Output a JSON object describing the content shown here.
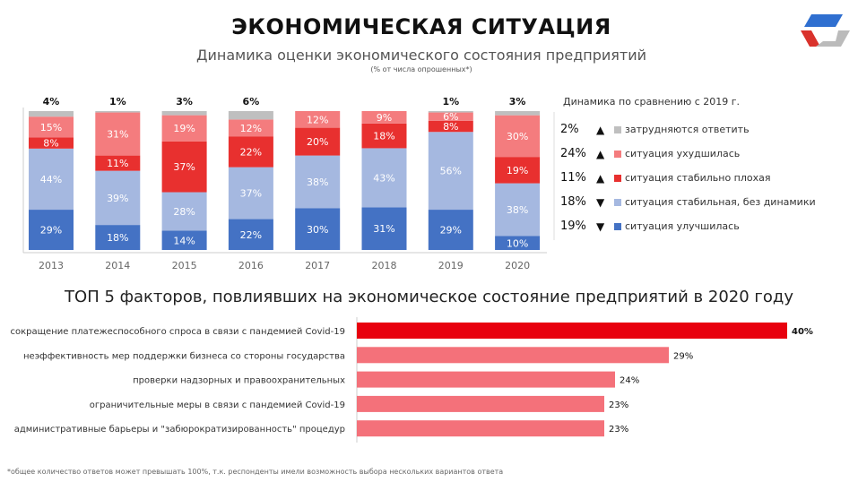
{
  "header": {
    "title": "ЭКОНОМИЧЕСКАЯ СИТУАЦИЯ",
    "subtitle": "Динамика оценки экономического состояния предприятий",
    "note": "(% от числа опрошенных*)"
  },
  "legend": {
    "title": "Динамика по сравнению с 2019 г.",
    "items": [
      {
        "change": "2%",
        "arrow": "▲",
        "label": "затрудняются ответить",
        "color": "#BFBFBF"
      },
      {
        "change": "24%",
        "arrow": "▲",
        "label": "ситуация ухудшилась",
        "color": "#F47C7E"
      },
      {
        "change": "11%",
        "arrow": "▲",
        "label": "ситуация стабильно плохая",
        "color": "#E8302F"
      },
      {
        "change": "18%",
        "arrow": "▼",
        "label": "ситуация стабильная, без динамики",
        "color": "#A5B8E0"
      },
      {
        "change": "19%",
        "arrow": "▼",
        "label": "ситуация улучшилась",
        "color": "#4472C4"
      }
    ]
  },
  "section_title": "ТОП 5 факторов, повлиявших на экономическое состояние предприятий в 2020 году",
  "footnote": "*общее количество ответов  может превышать 100%, т.к. респонденты имели возможность выбора нескольких вариантов ответа",
  "chart_data": [
    {
      "type": "bar",
      "stacked": true,
      "categories": [
        "2013",
        "2014",
        "2015",
        "2016",
        "2017",
        "2018",
        "2019",
        "2020"
      ],
      "series": [
        {
          "name": "ситуация улучшилась",
          "color": "#4472C4",
          "values": [
            29,
            18,
            14,
            22,
            30,
            31,
            29,
            10
          ]
        },
        {
          "name": "ситуация стабильная, без динамики",
          "color": "#A5B8E0",
          "values": [
            44,
            39,
            28,
            37,
            38,
            43,
            56,
            38
          ]
        },
        {
          "name": "ситуация стабильно плохая",
          "color": "#E8302F",
          "values": [
            8,
            11,
            37,
            22,
            20,
            18,
            8,
            19
          ]
        },
        {
          "name": "ситуация ухудшилась",
          "color": "#F47C7E",
          "values": [
            15,
            31,
            19,
            12,
            12,
            9,
            6,
            30
          ]
        },
        {
          "name": "затрудняются ответить",
          "color": "#BFBFBF",
          "values": [
            4,
            1,
            3,
            6,
            0,
            0,
            1,
            3
          ]
        }
      ],
      "unit": "%"
    },
    {
      "type": "bar",
      "orientation": "horizontal",
      "categories": [
        "сокращение платежеспособного спроса в связи с пандемией Covid-19",
        "неэффективность мер поддержки бизнеса со стороны государства",
        "проверки надзорных и правоохранительных",
        "ограничительные меры в связи с пандемией Covid-19",
        "административные барьеры и \"забюрократизированность\" процедур"
      ],
      "values": [
        40,
        29,
        24,
        23,
        23
      ],
      "colors": [
        "#E8000E",
        "#F4717A",
        "#F4717A",
        "#F4717A",
        "#F4717A"
      ],
      "unit": "%"
    }
  ]
}
